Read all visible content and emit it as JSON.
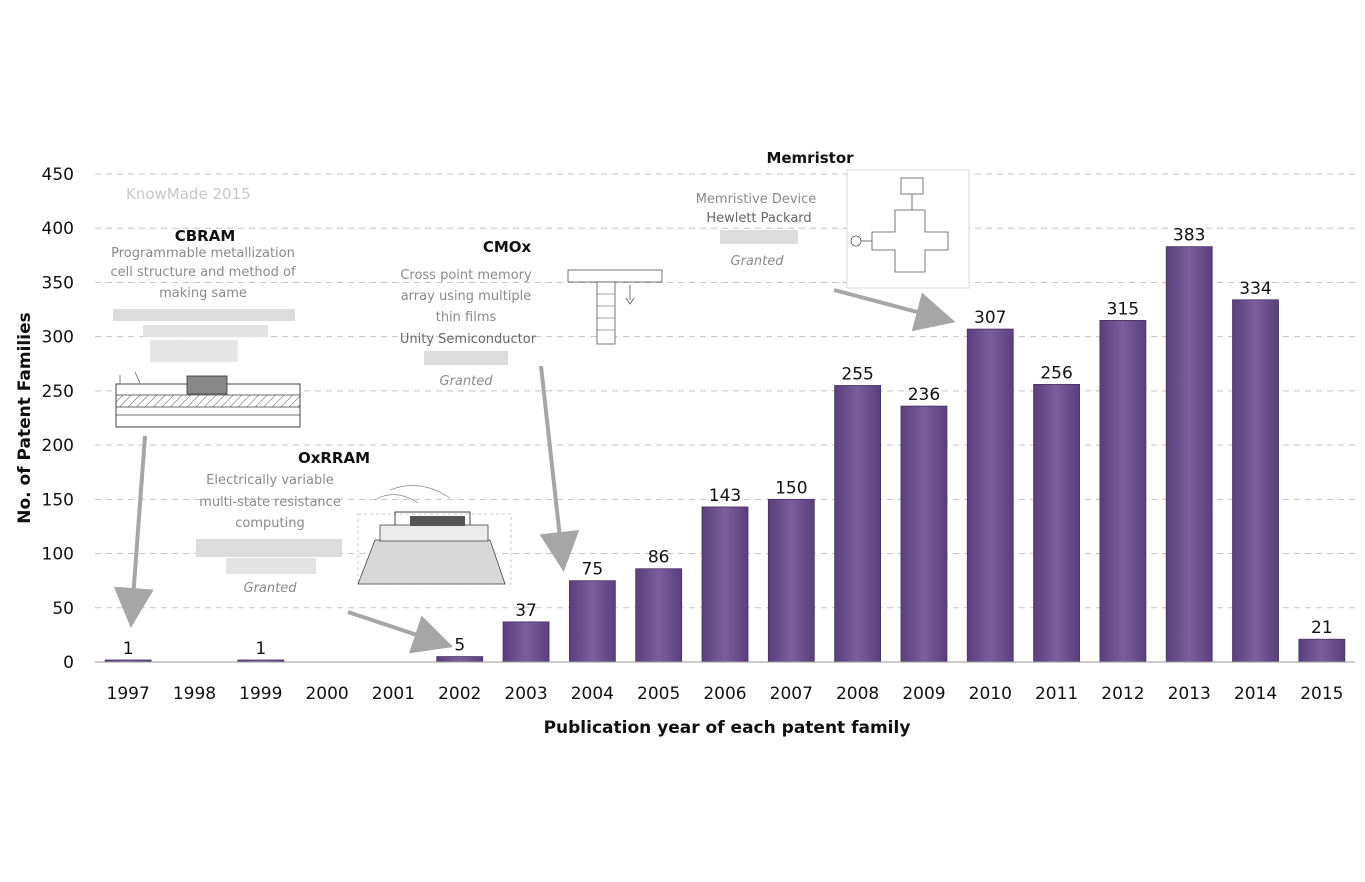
{
  "chart_data": {
    "type": "bar",
    "title": "",
    "xlabel": "Publication year of each patent family",
    "ylabel": "No. of Patent Families",
    "ylim": [
      0,
      450
    ],
    "yticks": [
      0,
      50,
      100,
      150,
      200,
      250,
      300,
      350,
      400,
      450
    ],
    "grid": true,
    "categories": [
      "1997",
      "1998",
      "1999",
      "2000",
      "2001",
      "2002",
      "2003",
      "2004",
      "2005",
      "2006",
      "2007",
      "2008",
      "2009",
      "2010",
      "2011",
      "2012",
      "2013",
      "2014",
      "2015"
    ],
    "values": [
      1,
      0,
      1,
      0,
      0,
      5,
      37,
      75,
      86,
      143,
      150,
      255,
      236,
      307,
      256,
      315,
      383,
      334,
      21
    ],
    "data_labels": [
      "1",
      "",
      "1",
      "",
      "",
      "5",
      "37",
      "75",
      "86",
      "143",
      "150",
      "255",
      "236",
      "307",
      "256",
      "315",
      "383",
      "334",
      "21"
    ],
    "bar_color": "#6b4f8e",
    "watermark": "KnowMade 2015",
    "annotations": [
      {
        "title": "CBRAM",
        "lines": [
          "Programmable metallization",
          "cell structure and method of",
          "making same"
        ],
        "company": "",
        "status": "",
        "points_to": "1997"
      },
      {
        "title": "OxRRAM",
        "lines": [
          "Electrically variable",
          "multi-state resistance",
          "computing"
        ],
        "company": "",
        "status": "Granted",
        "points_to": "2002"
      },
      {
        "title": "CMOx",
        "lines": [
          "Cross point memory",
          "array using multiple",
          "thin films"
        ],
        "company": "Unity Semiconductor",
        "status": "Granted",
        "points_to": "2004"
      },
      {
        "title": "Memristor",
        "lines": [
          "Memristive Device"
        ],
        "company": "Hewlett Packard",
        "status": "Granted",
        "points_to": "2010"
      }
    ]
  }
}
